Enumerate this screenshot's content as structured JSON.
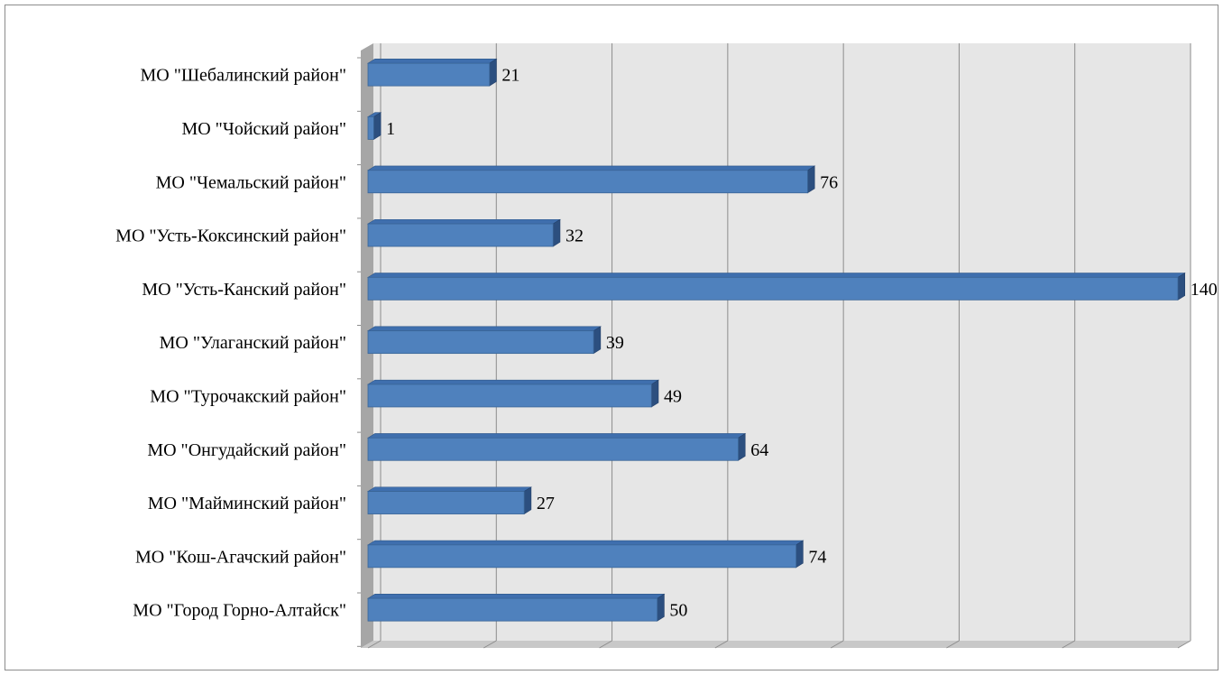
{
  "chart_data": {
    "type": "bar",
    "orientation": "horizontal",
    "style": "3d",
    "title": "",
    "xlabel": "",
    "ylabel": "",
    "categories": [
      "МО \"Шебалинский район\"",
      "МО \"Чойский район\"",
      "МО \"Чемальский район\"",
      "МО \"Усть-Коксинский район\"",
      "МО \"Усть-Канский район\"",
      "МО \"Улаганский район\"",
      "МО \"Турочакский район\"",
      "МО \"Онгудайский район\"",
      "МО \"Майминский район\"",
      "МО \"Кош-Агачский район\"",
      "МО \"Город Горно-Алтайск\""
    ],
    "values": [
      21,
      1,
      76,
      32,
      140,
      39,
      49,
      64,
      27,
      74,
      50
    ],
    "value_labels": [
      "21",
      "1",
      "76",
      "32",
      "140",
      "39",
      "49",
      "64",
      "27",
      "74",
      "50"
    ],
    "xlim": [
      0,
      140
    ],
    "gridlines": true,
    "grid_divisions": 7,
    "tick_labels_shown": false,
    "legend": "none",
    "colors": {
      "bar_front": "#4f81bd",
      "bar_top": "#3f6fae",
      "bar_side": "#2c4f7f",
      "plot_back": "#e6e6e6",
      "plot_floor": "#c8c8c8",
      "plot_wall": "#a6a6a6",
      "gridline": "#8c8c8c"
    }
  }
}
